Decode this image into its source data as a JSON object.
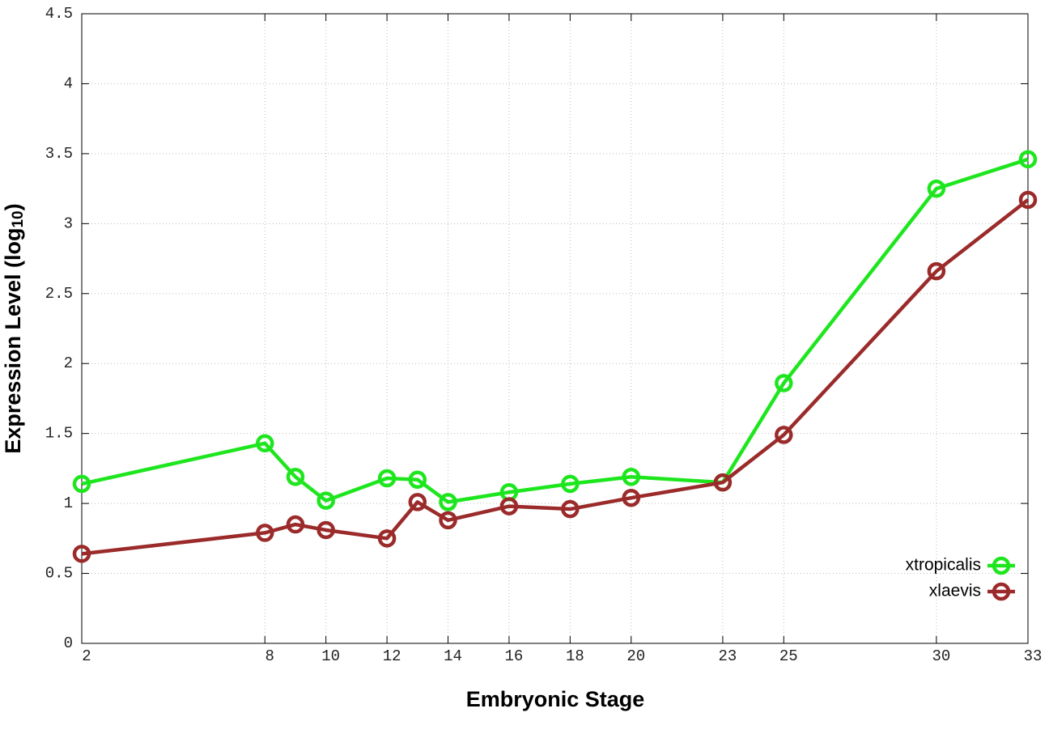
{
  "chart_data": {
    "type": "line",
    "xlabel": "Embryonic Stage",
    "ylabel": {
      "text": "Expression Level (log",
      "sub": "10",
      "end": ")"
    },
    "x": [
      2,
      8,
      9,
      10,
      12,
      13,
      14,
      16,
      18,
      20,
      23,
      25,
      30,
      33
    ],
    "series": [
      {
        "name": "xtropicalis",
        "color": "#1ee61e",
        "values": [
          1.14,
          1.43,
          1.19,
          1.02,
          1.18,
          1.17,
          1.01,
          1.08,
          1.14,
          1.19,
          1.15,
          1.86,
          3.25,
          3.46
        ]
      },
      {
        "name": "xlaevis",
        "color": "#9b2a2a",
        "values": [
          0.64,
          0.79,
          0.85,
          0.81,
          0.75,
          1.01,
          0.88,
          0.98,
          0.96,
          1.04,
          1.15,
          1.49,
          2.66,
          3.17
        ]
      }
    ],
    "xlim": [
      2,
      33
    ],
    "xticks": [
      2,
      8,
      10,
      12,
      14,
      16,
      18,
      20,
      23,
      25,
      30,
      33
    ],
    "ylim": [
      0,
      4.5
    ],
    "yticks": [
      0,
      0.5,
      1,
      1.5,
      2,
      2.5,
      3,
      3.5,
      4,
      4.5
    ],
    "grid": true,
    "legend": "lower right"
  }
}
